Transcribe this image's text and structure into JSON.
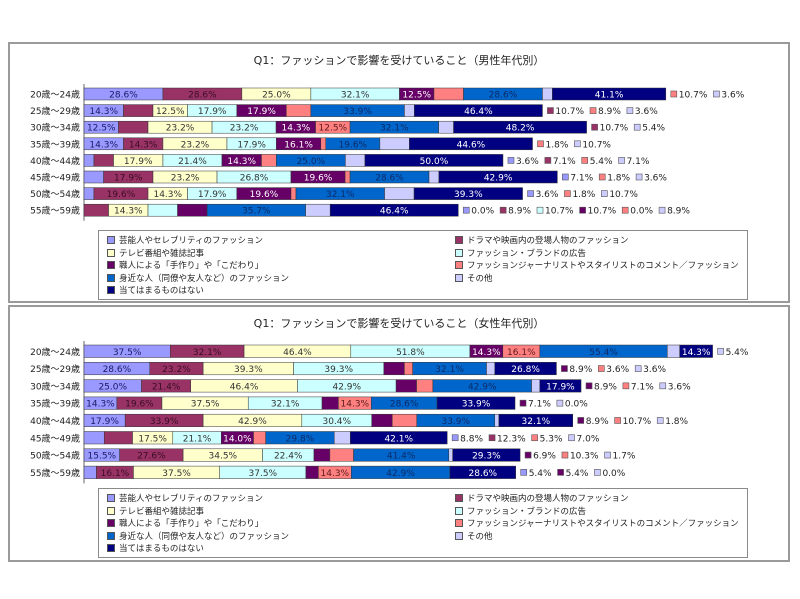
{
  "series": [
    {
      "name": "芸能人やセレブリティのファッション",
      "color": "#9999ff",
      "text": "#1a1a66"
    },
    {
      "name": "ドラマや映画内の登場人物のファッション",
      "color": "#993366",
      "text": "#3a0d22"
    },
    {
      "name": "テレビ番組や雑誌記事",
      "color": "#ffffcc",
      "text": "#333333"
    },
    {
      "name": "ファッション・ブランドの広告",
      "color": "#ccffff",
      "text": "#333333"
    },
    {
      "name": "職人による「手作り」や「こだわり」",
      "color": "#660066",
      "text": "#ffffff"
    },
    {
      "name": "ファッションジャーナリストやスタイリストのコメント／ファッション",
      "color": "#ff8080",
      "text": "#5a1a1a"
    },
    {
      "name": "身近な人（同僚や友人など）のファッション",
      "color": "#0066cc",
      "text": "#0d2a66"
    },
    {
      "name": "その他",
      "color": "#ccccff",
      "text": "#333333"
    },
    {
      "name": "当てはまるものはない",
      "color": "#000080",
      "text": "#ffffff"
    }
  ],
  "chart_data": [
    {
      "type": "bar",
      "orientation": "horizontal-stacked",
      "title": "Q1：ファッションで影響を受けていること（男性年代別）",
      "categories": [
        "20歳～24歳",
        "25歳～29歳",
        "30歳～34歳",
        "35歳～39歳",
        "40歳～44歳",
        "45歳～49歳",
        "50歳～54歳",
        "55歳～59歳"
      ],
      "xlim": [
        0,
        250
      ],
      "grid": false,
      "legend": "bottom",
      "series_values": [
        [
          28.6,
          14.3,
          12.5,
          14.3,
          3.6,
          7.1,
          3.6,
          0.0
        ],
        [
          28.6,
          10.7,
          10.7,
          14.3,
          7.1,
          17.9,
          19.6,
          8.9
        ],
        [
          25.0,
          12.5,
          23.2,
          23.2,
          17.9,
          23.2,
          14.3,
          14.3
        ],
        [
          32.1,
          17.9,
          23.2,
          17.9,
          21.4,
          26.8,
          17.9,
          10.7
        ],
        [
          12.5,
          17.9,
          14.3,
          16.1,
          14.3,
          19.6,
          19.6,
          10.7
        ],
        [
          10.7,
          8.9,
          12.5,
          1.8,
          5.4,
          1.8,
          1.8,
          0.0
        ],
        [
          28.6,
          33.9,
          32.1,
          19.6,
          25.0,
          28.6,
          32.1,
          35.7
        ],
        [
          3.6,
          3.6,
          5.4,
          10.7,
          7.1,
          3.6,
          10.7,
          8.9
        ],
        [
          41.1,
          46.4,
          48.2,
          44.6,
          50.0,
          42.9,
          39.3,
          46.4
        ]
      ]
    },
    {
      "type": "bar",
      "orientation": "horizontal-stacked",
      "title": "Q1：ファッションで影響を受けていること（女性年代別）",
      "categories": [
        "20歳～24歳",
        "25歳～29歳",
        "30歳～34歳",
        "35歳～39歳",
        "40歳～44歳",
        "45歳～49歳",
        "50歳～54歳",
        "55歳～59歳"
      ],
      "xlim": [
        0,
        300
      ],
      "grid": false,
      "legend": "bottom",
      "series_values": [
        [
          37.5,
          28.6,
          25.0,
          14.3,
          17.9,
          8.8,
          15.5,
          5.4
        ],
        [
          32.1,
          23.2,
          21.4,
          19.6,
          33.9,
          12.3,
          27.6,
          16.1
        ],
        [
          46.4,
          39.3,
          46.4,
          37.5,
          42.9,
          17.5,
          34.5,
          37.5
        ],
        [
          51.8,
          39.3,
          42.9,
          32.1,
          30.4,
          21.1,
          22.4,
          37.5
        ],
        [
          14.3,
          8.9,
          8.9,
          7.1,
          8.9,
          14.0,
          6.9,
          5.4
        ],
        [
          16.1,
          3.6,
          7.1,
          14.3,
          10.7,
          5.3,
          10.3,
          14.3
        ],
        [
          55.4,
          32.1,
          42.9,
          28.6,
          33.9,
          29.8,
          41.4,
          42.9
        ],
        [
          5.4,
          3.6,
          3.6,
          0.0,
          1.8,
          7.0,
          1.7,
          0.0
        ],
        [
          14.3,
          26.8,
          17.9,
          33.9,
          32.1,
          42.1,
          29.3,
          28.6
        ]
      ]
    }
  ]
}
